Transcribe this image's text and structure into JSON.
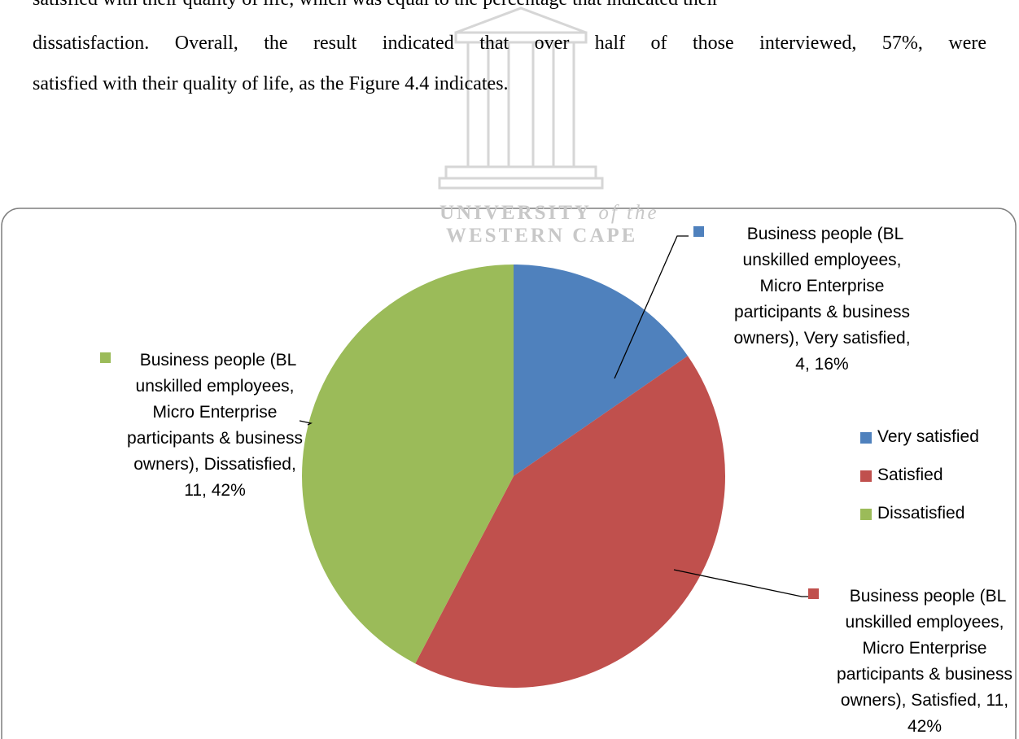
{
  "paragraph": [
    "satisfied with their quality of life, which was equal to the percentage that indicated their",
    "dissatisfaction. Overall, the result indicated that over half of those interviewed, 57%, were",
    "satisfied with their quality of life, as the Figure 4.4 indicates."
  ],
  "watermark": {
    "line1": "UNIVERSITY",
    "line1_suffix": "of the",
    "line2": "WESTERN CAPE"
  },
  "chart_data": {
    "type": "pie",
    "categories": [
      "Very satisfied",
      "Satisfied",
      "Dissatisfied"
    ],
    "values": [
      4,
      11,
      11
    ],
    "value_labels": [
      "Business people (BL unskilled employees, Micro Enterprise participants & business owners), Very satisfied, 4, 16%",
      "Business people (BL unskilled employees, Micro Enterprise participants & business owners), Satisfied, 11, 42%",
      "Business people (BL unskilled employees, Micro Enterprise participants & business owners), Dissatisfied, 11, 42%"
    ],
    "colors": [
      "#4f81bd",
      "#c0504d",
      "#9bbb59"
    ],
    "legend": "right"
  }
}
